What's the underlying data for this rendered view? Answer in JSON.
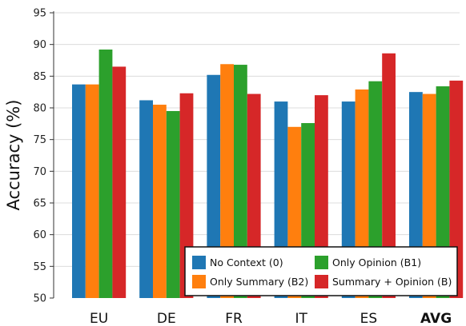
{
  "chart_data": {
    "type": "bar",
    "title": "",
    "xlabel": "",
    "ylabel": "Accuracy (%)",
    "ylim": [
      50,
      95
    ],
    "yticks": [
      50,
      55,
      60,
      65,
      70,
      75,
      80,
      85,
      90,
      95
    ],
    "grid": "horizontal",
    "legend_position": "bottom-right",
    "categories": [
      "EU",
      "DE",
      "FR",
      "IT",
      "ES",
      "AVG"
    ],
    "bold_categories": [
      "AVG"
    ],
    "series": [
      {
        "name": "No Context (0)",
        "color": "#1f77b4",
        "values": [
          83.7,
          81.2,
          85.2,
          81.0,
          81.0,
          82.5
        ]
      },
      {
        "name": "Only Summary (B2)",
        "color": "#ff7f0e",
        "values": [
          83.7,
          80.5,
          86.9,
          77.0,
          82.9,
          82.2
        ]
      },
      {
        "name": "Only Opinion (B1)",
        "color": "#2ca02c",
        "values": [
          89.2,
          79.5,
          86.8,
          77.6,
          84.2,
          83.4
        ]
      },
      {
        "name": "Summary + Opinion (B)",
        "color": "#d62728",
        "values": [
          86.5,
          82.3,
          82.2,
          82.0,
          88.6,
          84.3
        ]
      }
    ]
  }
}
